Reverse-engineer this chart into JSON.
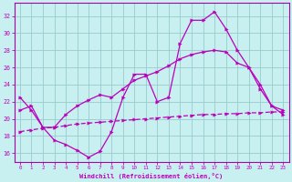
{
  "xlabel": "Windchill (Refroidissement éolien,°C)",
  "bg_color": "#c8f0f0",
  "line_color": "#bb00bb",
  "grid_color": "#99cccc",
  "spine_color": "#aa00aa",
  "xlim": [
    -0.5,
    23.5
  ],
  "ylim": [
    15.0,
    33.5
  ],
  "yticks": [
    16,
    18,
    20,
    22,
    24,
    26,
    28,
    30,
    32
  ],
  "xticks": [
    0,
    1,
    2,
    3,
    4,
    5,
    6,
    7,
    8,
    9,
    10,
    11,
    12,
    13,
    14,
    15,
    16,
    17,
    18,
    19,
    20,
    21,
    22,
    23
  ],
  "line1_x": [
    0,
    1,
    2,
    3,
    4,
    5,
    6,
    7,
    8,
    9,
    10,
    11,
    12,
    13,
    14,
    15,
    16,
    17,
    18,
    19,
    20,
    21,
    22,
    23
  ],
  "line1_y": [
    22.5,
    21.0,
    19.0,
    17.5,
    17.0,
    16.3,
    15.5,
    16.2,
    18.5,
    22.5,
    25.2,
    25.2,
    22.0,
    22.5,
    28.8,
    31.5,
    31.5,
    32.5,
    30.5,
    28.0,
    26.0,
    24.0,
    21.5,
    20.5
  ],
  "line2_x": [
    0,
    1,
    2,
    3,
    4,
    5,
    6,
    7,
    8,
    9,
    10,
    11,
    12,
    13,
    14,
    15,
    16,
    17,
    18,
    19,
    20,
    21,
    22,
    23
  ],
  "line2_y": [
    21.0,
    21.5,
    19.0,
    19.0,
    20.5,
    21.5,
    22.2,
    22.8,
    22.5,
    23.5,
    24.5,
    25.0,
    25.5,
    26.2,
    27.0,
    27.5,
    27.8,
    28.0,
    27.8,
    26.5,
    26.0,
    23.5,
    21.5,
    21.0
  ],
  "line3_x": [
    0,
    1,
    2,
    3,
    4,
    5,
    6,
    7,
    8,
    9,
    10,
    11,
    12,
    13,
    14,
    15,
    16,
    17,
    18,
    19,
    20,
    21,
    22,
    23
  ],
  "line3_y": [
    18.5,
    18.7,
    18.9,
    19.0,
    19.2,
    19.4,
    19.5,
    19.6,
    19.7,
    19.8,
    19.9,
    20.0,
    20.1,
    20.2,
    20.3,
    20.4,
    20.5,
    20.5,
    20.6,
    20.6,
    20.7,
    20.7,
    20.8,
    20.8
  ]
}
